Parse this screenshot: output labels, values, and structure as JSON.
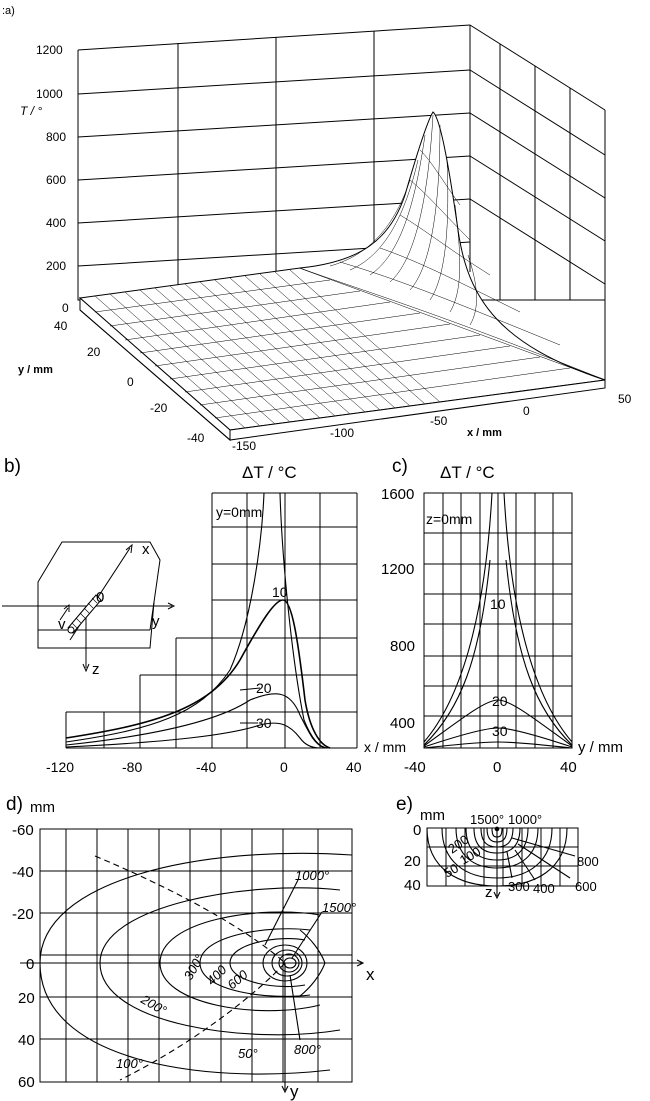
{
  "panel_a": {
    "label": ":a)",
    "z_axis_label": "T / °",
    "z_ticks": [
      "1200",
      "1000",
      "800",
      "600",
      "400",
      "200",
      "0"
    ],
    "y_axis_label": "y / mm",
    "y_ticks": [
      "40",
      "20",
      "0",
      "-20",
      "-40"
    ],
    "x_axis_label": "x / mm",
    "x_ticks": [
      "-150",
      "-100",
      "-50",
      "0",
      "50"
    ]
  },
  "panel_b": {
    "label": "b)",
    "title": "ΔT / °C",
    "curve_note": "y=0mm",
    "curve_labels": [
      "10",
      "20",
      "30"
    ],
    "x_axis_label": "x / mm",
    "x_ticks": [
      "-120",
      "-80",
      "-40",
      "0",
      "40"
    ],
    "inset": {
      "x": "x",
      "y": "y",
      "z": "z",
      "v": "v",
      "origin": "0"
    }
  },
  "panel_c": {
    "label": "c)",
    "title": "ΔT / °C",
    "curve_note": "z=0mm",
    "y_ticks": [
      "1600",
      "1200",
      "800",
      "400"
    ],
    "curve_labels": [
      "10",
      "20",
      "30"
    ],
    "x_axis_label": "y / mm",
    "x_ticks": [
      "-40",
      "0",
      "40"
    ]
  },
  "panel_d": {
    "label": "d)",
    "unit": "mm",
    "y_ticks": [
      "-60",
      "-40",
      "-20",
      "0",
      "20",
      "40",
      "60"
    ],
    "x_axis_label": "x",
    "y_axis_label": "y",
    "isotherms": [
      "1000°",
      "1500°",
      "600",
      "400",
      "300°",
      "200°",
      "100°",
      "50°",
      "800°"
    ]
  },
  "panel_e": {
    "label": "e)",
    "unit": "mm",
    "y_ticks": [
      "0",
      "20",
      "40"
    ],
    "isotherms_top": [
      "1500°",
      "1000°"
    ],
    "isotherms_right": [
      "800",
      "600",
      "400",
      "300"
    ],
    "isotherms_left": [
      "200",
      "100",
      "50"
    ],
    "z_axis_label": "z"
  }
}
